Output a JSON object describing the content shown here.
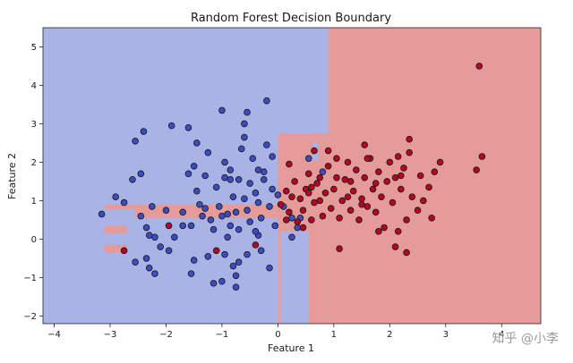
{
  "chart_data": {
    "type": "scatter",
    "title": "Random Forest Decision Boundary",
    "xlabel": "Feature 1",
    "ylabel": "Feature 2",
    "xlim": [
      -4.2,
      4.7
    ],
    "ylim": [
      -2.2,
      5.5
    ],
    "x_ticks": [
      -4,
      -3,
      -2,
      -1,
      0,
      1,
      2,
      3,
      4
    ],
    "y_ticks": [
      -2,
      -1,
      0,
      1,
      2,
      3,
      4,
      5
    ],
    "grid": false,
    "legend": "none",
    "colors": {
      "region_class0": "#a9b3e6",
      "region_class1": "#e59c98",
      "point_class0": "#3b4cc0",
      "point_class1": "#b40426",
      "point_edge": "#1a1a1a"
    },
    "regions_class1": [
      {
        "x0": 0.9,
        "x1": 4.7,
        "y0": -2.2,
        "y1": 5.5
      },
      {
        "x0": 0.55,
        "x1": 0.9,
        "y0": -2.2,
        "y1": 2.75
      },
      {
        "x0": 0.0,
        "x1": 0.55,
        "y0": 0.2,
        "y1": 2.75
      },
      {
        "x0": 0.0,
        "x1": 0.05,
        "y0": -2.2,
        "y1": 0.2
      },
      {
        "x0": -2.55,
        "x1": 0.0,
        "y0": 0.55,
        "y1": 0.9
      },
      {
        "x0": -3.1,
        "x1": -2.55,
        "y0": 0.78,
        "y1": 0.9
      },
      {
        "x0": -3.1,
        "x1": -2.7,
        "y0": 0.15,
        "y1": 0.35
      },
      {
        "x0": -3.1,
        "x1": -2.7,
        "y0": -0.35,
        "y1": -0.15
      }
    ],
    "regions_class0": [
      {
        "x0": 0.62,
        "x1": 0.72,
        "y0": 2.05,
        "y1": 2.5
      },
      {
        "x0": 0.12,
        "x1": 0.52,
        "y0": -0.05,
        "y1": 0.2
      }
    ],
    "series": [
      {
        "class": 0,
        "points": [
          [
            -3.15,
            0.65
          ],
          [
            -2.9,
            1.1
          ],
          [
            -2.75,
            0.95
          ],
          [
            -2.6,
            1.55
          ],
          [
            -2.55,
            2.55
          ],
          [
            -2.45,
            1.7
          ],
          [
            -2.45,
            0.6
          ],
          [
            -2.4,
            2.8
          ],
          [
            -2.35,
            0.3
          ],
          [
            -2.3,
            0.1
          ],
          [
            -2.25,
            0.85
          ],
          [
            -2.2,
            0.05
          ],
          [
            -2.0,
            0.75
          ],
          [
            -1.9,
            2.95
          ],
          [
            -1.85,
            0.05
          ],
          [
            -1.7,
            0.7
          ],
          [
            -1.6,
            1.7
          ],
          [
            -1.55,
            0.35
          ],
          [
            -1.5,
            1.9
          ],
          [
            -1.45,
            2.5
          ],
          [
            -1.4,
            0.9
          ],
          [
            -1.35,
            0.6
          ],
          [
            -1.3,
            1.65
          ],
          [
            -1.3,
            0.8
          ],
          [
            -1.25,
            2.25
          ],
          [
            -1.2,
            0.5
          ],
          [
            -1.15,
            0.25
          ],
          [
            -1.1,
            1.35
          ],
          [
            -1.05,
            0.85
          ],
          [
            -1.0,
            0.6
          ],
          [
            -0.95,
            1.6
          ],
          [
            -0.9,
            0.05
          ],
          [
            -0.85,
            1.8
          ],
          [
            -0.85,
            0.35
          ],
          [
            -0.8,
            1.1
          ],
          [
            -0.75,
            0.7
          ],
          [
            -0.7,
            1.55
          ],
          [
            -0.7,
            0.25
          ],
          [
            -0.65,
            2.35
          ],
          [
            -0.6,
            1.05
          ],
          [
            -0.55,
            0.75
          ],
          [
            -0.5,
            1.45
          ],
          [
            -0.5,
            0.45
          ],
          [
            -0.45,
            2.1
          ],
          [
            -0.4,
            1.2
          ],
          [
            -0.35,
            0.95
          ],
          [
            -0.3,
            0.55
          ],
          [
            -0.25,
            1.55
          ],
          [
            -0.2,
            2.45
          ],
          [
            -0.15,
            0.85
          ],
          [
            -0.1,
            1.3
          ],
          [
            -0.05,
            0.35
          ],
          [
            0.0,
            1.15
          ],
          [
            -0.3,
            -0.3
          ],
          [
            -0.9,
            0.65
          ],
          [
            -1.7,
            0.35
          ],
          [
            -1.5,
            -0.55
          ],
          [
            -0.95,
            -0.4
          ],
          [
            -0.35,
            0.1
          ],
          [
            -2.1,
            -0.2
          ],
          [
            -2.35,
            -0.5
          ],
          [
            -2.3,
            -0.75
          ],
          [
            -2.2,
            -0.9
          ],
          [
            -1.25,
            -0.45
          ],
          [
            -0.8,
            -0.7
          ],
          [
            -0.75,
            -0.95
          ],
          [
            -1.0,
            -1.1
          ],
          [
            -1.15,
            -1.15
          ],
          [
            -0.75,
            -1.25
          ],
          [
            -0.55,
            -0.4
          ],
          [
            0.25,
            0.05
          ],
          [
            0.1,
            0.85
          ],
          [
            -0.15,
            -0.75
          ],
          [
            -0.6,
            3.0
          ],
          [
            -0.55,
            3.3
          ],
          [
            -1.0,
            3.35
          ],
          [
            -0.2,
            3.6
          ],
          [
            -0.95,
            2.0
          ],
          [
            -1.45,
            1.25
          ],
          [
            -1.6,
            2.9
          ],
          [
            -0.25,
            1.75
          ],
          [
            -0.6,
            2.65
          ],
          [
            -0.4,
            0.2
          ],
          [
            0.35,
            0.3
          ],
          [
            0.4,
            0.55
          ],
          [
            0.8,
            1.75
          ],
          [
            0.25,
            0.55
          ],
          [
            -2.55,
            -0.6
          ],
          [
            -0.7,
            -0.6
          ],
          [
            -1.95,
            -0.3
          ],
          [
            -1.55,
            -0.9
          ],
          [
            -0.85,
            1.55
          ],
          [
            -0.35,
            1.8
          ],
          [
            -0.1,
            2.15
          ],
          [
            0.55,
            2.1
          ]
        ]
      },
      {
        "class": 1,
        "points": [
          [
            -2.75,
            -0.3
          ],
          [
            -1.95,
            0.35
          ],
          [
            -1.1,
            -0.3
          ],
          [
            -0.4,
            -0.15
          ],
          [
            0.05,
            0.9
          ],
          [
            0.15,
            1.25
          ],
          [
            0.2,
            0.7
          ],
          [
            0.2,
            1.95
          ],
          [
            0.3,
            1.5
          ],
          [
            0.35,
            0.45
          ],
          [
            0.4,
            1.05
          ],
          [
            0.45,
            0.75
          ],
          [
            0.5,
            1.3
          ],
          [
            0.55,
            1.7
          ],
          [
            0.6,
            0.5
          ],
          [
            0.65,
            0.95
          ],
          [
            0.7,
            1.45
          ],
          [
            0.75,
            1.0
          ],
          [
            0.8,
            0.6
          ],
          [
            0.85,
            1.2
          ],
          [
            0.9,
            1.9
          ],
          [
            0.95,
            0.8
          ],
          [
            1.0,
            1.3
          ],
          [
            1.05,
            2.1
          ],
          [
            1.1,
            0.55
          ],
          [
            1.15,
            1.0
          ],
          [
            1.2,
            1.55
          ],
          [
            1.25,
            2.0
          ],
          [
            1.3,
            0.75
          ],
          [
            1.35,
            1.25
          ],
          [
            1.4,
            1.8
          ],
          [
            1.45,
            0.5
          ],
          [
            1.5,
            1.05
          ],
          [
            1.55,
            1.6
          ],
          [
            1.6,
            0.85
          ],
          [
            1.65,
            2.1
          ],
          [
            1.7,
            1.3
          ],
          [
            1.75,
            0.7
          ],
          [
            1.8,
            1.75
          ],
          [
            1.85,
            1.1
          ],
          [
            1.9,
            0.3
          ],
          [
            1.95,
            1.5
          ],
          [
            2.0,
            2.0
          ],
          [
            2.05,
            0.95
          ],
          [
            2.1,
            1.6
          ],
          [
            2.15,
            0.2
          ],
          [
            2.2,
            1.3
          ],
          [
            2.25,
            1.85
          ],
          [
            2.3,
            0.5
          ],
          [
            2.35,
            2.25
          ],
          [
            2.4,
            1.1
          ],
          [
            2.5,
            0.75
          ],
          [
            2.55,
            1.65
          ],
          [
            2.6,
            1.0
          ],
          [
            2.7,
            1.35
          ],
          [
            2.75,
            0.55
          ],
          [
            2.8,
            1.75
          ],
          [
            2.1,
            -0.2
          ],
          [
            2.3,
            -0.35
          ],
          [
            1.8,
            0.2
          ],
          [
            2.9,
            2.0
          ],
          [
            3.55,
            1.8
          ],
          [
            3.65,
            2.15
          ],
          [
            3.6,
            4.5
          ],
          [
            0.65,
            2.3
          ],
          [
            1.55,
            2.45
          ],
          [
            2.35,
            2.6
          ],
          [
            2.15,
            2.15
          ],
          [
            1.1,
            -0.25
          ],
          [
            0.45,
            0.3
          ],
          [
            0.55,
            1.2
          ],
          [
            0.9,
            2.3
          ],
          [
            1.3,
            1.5
          ],
          [
            1.6,
            2.1
          ],
          [
            2.2,
            1.65
          ],
          [
            0.25,
            1.1
          ],
          [
            0.75,
            1.6
          ],
          [
            1.05,
            1.6
          ],
          [
            1.5,
            0.9
          ],
          [
            1.75,
            1.45
          ],
          [
            1.25,
            1.1
          ],
          [
            0.6,
            1.35
          ],
          [
            0.15,
            0.5
          ]
        ]
      }
    ]
  },
  "watermark": "知乎 @小李"
}
